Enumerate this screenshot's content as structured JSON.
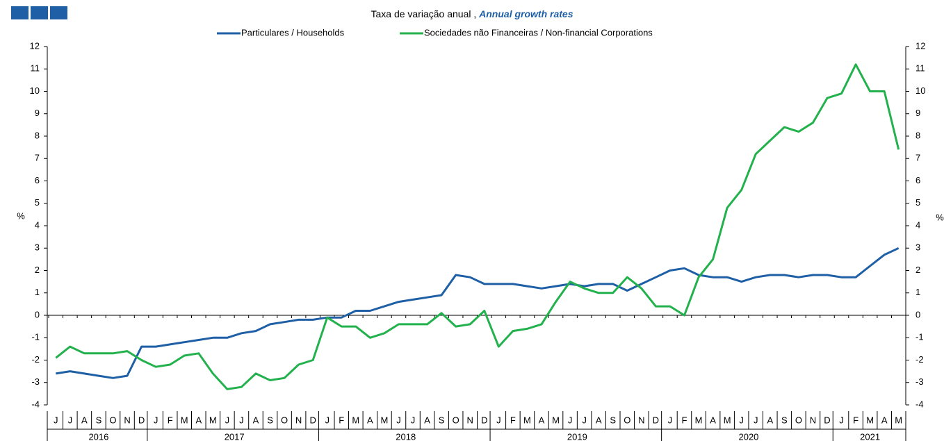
{
  "chart_data": {
    "type": "line",
    "subtitle": "Taxa de variação anual ,",
    "subtitle_en": "Annual growth rates",
    "y_label": "%",
    "y2_label": "%",
    "years": [
      {
        "label": "2016",
        "months": [
          "J",
          "J",
          "A",
          "S",
          "O",
          "N",
          "D"
        ]
      },
      {
        "label": "2017",
        "months": [
          "J",
          "F",
          "M",
          "A",
          "M",
          "J",
          "J",
          "A",
          "S",
          "O",
          "N",
          "D"
        ]
      },
      {
        "label": "2018",
        "months": [
          "J",
          "F",
          "M",
          "A",
          "M",
          "J",
          "J",
          "A",
          "S",
          "O",
          "N",
          "D"
        ]
      },
      {
        "label": "2019",
        "months": [
          "J",
          "F",
          "M",
          "A",
          "M",
          "J",
          "J",
          "A",
          "S",
          "O",
          "N",
          "D"
        ]
      },
      {
        "label": "2020",
        "months": [
          "J",
          "F",
          "M",
          "A",
          "M",
          "J",
          "J",
          "A",
          "S",
          "O",
          "N",
          "D"
        ]
      },
      {
        "label": "2021",
        "months": [
          "J",
          "F",
          "M",
          "A",
          "M"
        ]
      }
    ],
    "series": [
      {
        "name": "Particulares / Households",
        "color": "#1f5fa6",
        "values": [
          -2.6,
          -2.5,
          -2.6,
          -2.7,
          -2.8,
          -2.7,
          -1.4,
          -1.4,
          -1.3,
          -1.2,
          -1.1,
          -1.0,
          -1.0,
          -0.8,
          -0.7,
          -0.4,
          -0.3,
          -0.2,
          -0.2,
          -0.1,
          -0.1,
          0.2,
          0.2,
          0.4,
          0.6,
          0.7,
          0.8,
          0.9,
          1.8,
          1.7,
          1.4,
          1.4,
          1.4,
          1.3,
          1.2,
          1.3,
          1.4,
          1.3,
          1.4,
          1.4,
          1.1,
          1.4,
          1.7,
          2.0,
          2.1,
          1.8,
          1.7,
          1.7,
          1.5,
          1.7,
          1.8,
          1.8,
          1.7,
          1.8,
          1.8,
          1.7,
          1.7,
          2.2,
          2.7,
          3.0
        ]
      },
      {
        "name": "Sociedades não Financeiras / Non-financial Corporations",
        "color": "#22b14c",
        "values": [
          -1.9,
          -1.4,
          -1.7,
          -1.7,
          -1.7,
          -1.6,
          -2.0,
          -2.3,
          -2.2,
          -1.8,
          -1.7,
          -2.6,
          -3.3,
          -3.2,
          -2.6,
          -2.9,
          -2.8,
          -2.2,
          -2.0,
          -0.1,
          -0.5,
          -0.5,
          -1.0,
          -0.8,
          -0.4,
          -0.4,
          -0.4,
          0.1,
          -0.5,
          -0.4,
          0.2,
          -1.4,
          -0.7,
          -0.6,
          -0.4,
          0.6,
          1.5,
          1.2,
          1.0,
          1.0,
          1.7,
          1.2,
          0.4,
          0.4,
          0.0,
          1.7,
          2.5,
          4.8,
          5.6,
          7.2,
          7.8,
          8.4,
          8.2,
          8.6,
          9.7,
          9.9,
          11.2,
          10.0,
          10.0,
          7.4
        ]
      }
    ],
    "ylim": [
      -4,
      12
    ],
    "yticks": [
      -4,
      -3,
      -2,
      -1,
      0,
      1,
      2,
      3,
      4,
      5,
      6,
      7,
      8,
      9,
      10,
      11,
      12
    ],
    "y2lim": [
      -4,
      12
    ],
    "y2ticks": [
      -4,
      -3,
      -2,
      -1,
      0,
      1,
      2,
      3,
      4,
      5,
      6,
      7,
      8,
      9,
      10,
      11,
      12
    ]
  }
}
